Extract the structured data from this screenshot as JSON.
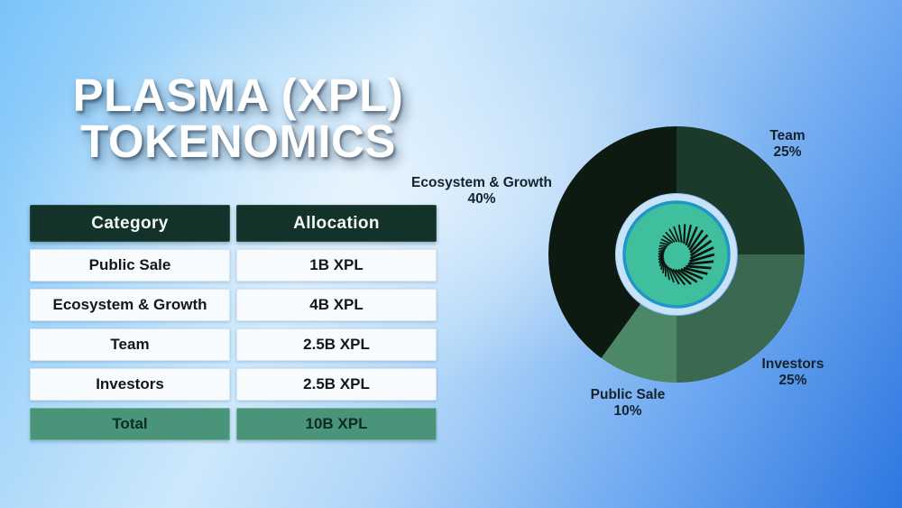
{
  "title": {
    "line1": "PLASMA (XPL)",
    "line2": "TOKENOMICS"
  },
  "table": {
    "headers": [
      "Category",
      "Allocation"
    ],
    "rows": [
      [
        "Public Sale",
        "1B XPL"
      ],
      [
        "Ecosystem & Growth",
        "4B XPL"
      ],
      [
        "Team",
        "2.5B XPL"
      ],
      [
        "Investors",
        "2.5B XPL"
      ]
    ],
    "total": [
      "Total",
      "10B XPL"
    ]
  },
  "chart_data": {
    "type": "pie",
    "title": "Plasma (XPL) token allocation donut chart",
    "donut": true,
    "start_angle_deg": -90,
    "direction": "clockwise",
    "categories": [
      "Team",
      "Investors",
      "Public Sale",
      "Ecosystem & Growth"
    ],
    "values": [
      25,
      25,
      10,
      40
    ],
    "unit": "%",
    "segments": [
      {
        "name": "Team",
        "value": 25,
        "color": "#1c3a29"
      },
      {
        "name": "Investors",
        "value": 25,
        "color": "#3a6850"
      },
      {
        "name": "Public Sale",
        "value": 10,
        "color": "#4c8768"
      },
      {
        "name": "Ecosystem & Growth",
        "value": 40,
        "color": "#0c1a11"
      }
    ],
    "callouts": {
      "team": {
        "name": "Team",
        "value": "25%"
      },
      "ecosystem": {
        "name": "Ecosystem & Growth",
        "value": "40%"
      },
      "investors": {
        "name": "Investors",
        "value": "25%"
      },
      "public": {
        "name": "Public Sale",
        "value": "10%"
      }
    },
    "center_logo": "plasma-swirl-logo",
    "colors": {
      "hole_disc": "#c8e2f8",
      "logo_disc": "#3fbf9e",
      "logo_disc_ring": "#1f96c8",
      "logo_rays": "#0a120e",
      "label_text": "#15222c"
    }
  },
  "colors": {
    "header_bg": "#12322a",
    "row_bg": "#f8fbfd",
    "total_bg": "#4a9579",
    "title_text": "#ffffff",
    "bg_light": "#cde8fc",
    "bg_dark": "#2e77e0"
  }
}
